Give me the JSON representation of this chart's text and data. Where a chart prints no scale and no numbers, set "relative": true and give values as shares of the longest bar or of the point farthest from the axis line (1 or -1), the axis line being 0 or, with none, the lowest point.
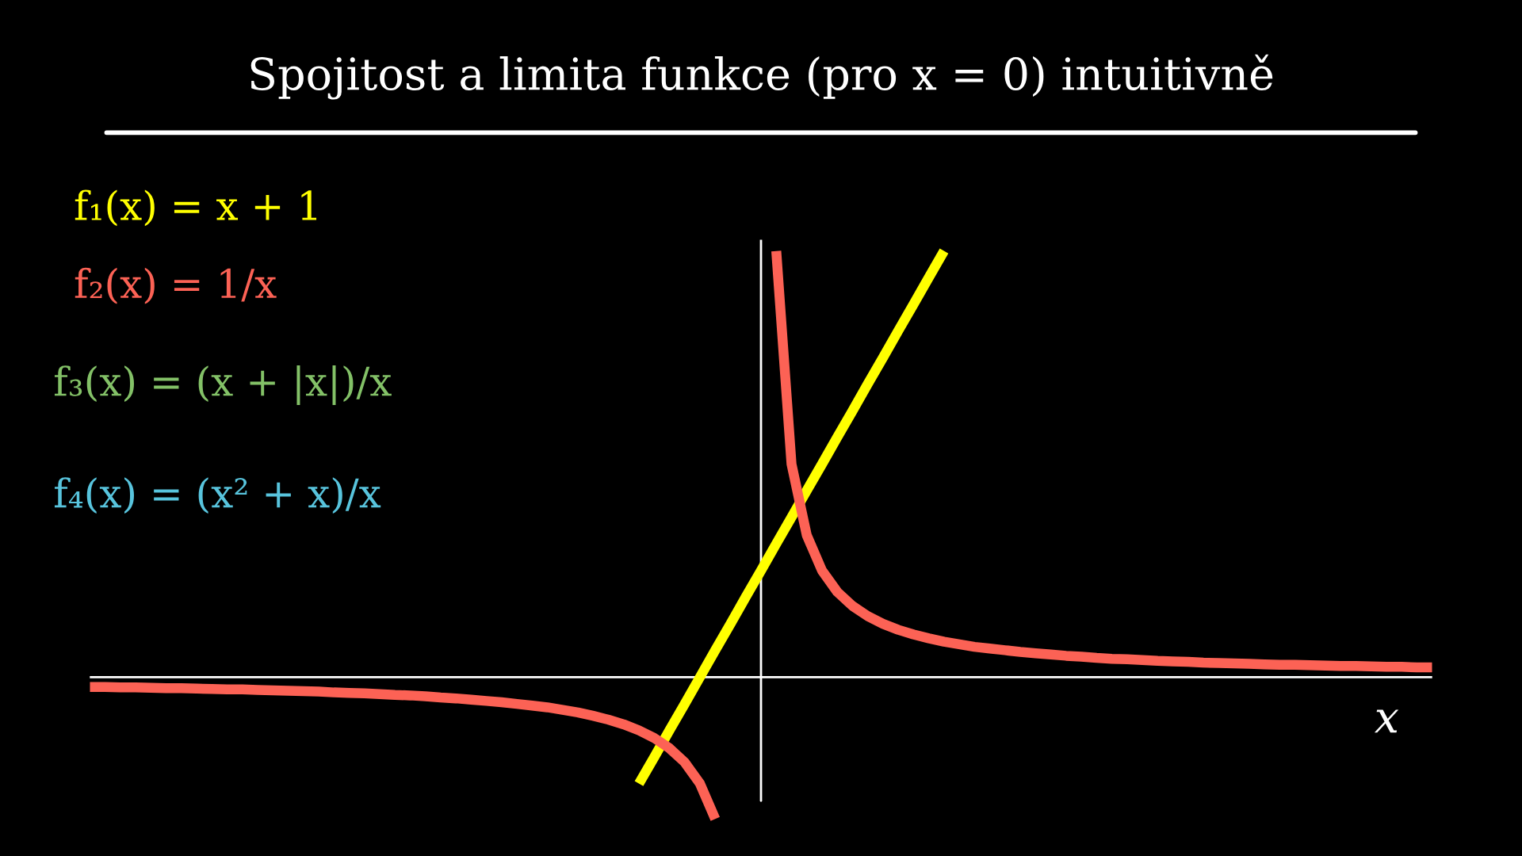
{
  "chart_data": {
    "type": "line",
    "title": "Spojitost a limita funkce (pro x = 0) intuitivně",
    "xlabel": "x",
    "relative": true,
    "legend": "top left",
    "categories": [
      null,
      null,
      null,
      null,
      null,
      null,
      null,
      null,
      null,
      null,
      null,
      null,
      null,
      null,
      null,
      null,
      null,
      null,
      null,
      null,
      null,
      null,
      null,
      null,
      null,
      null,
      null,
      null,
      null,
      null,
      null,
      null,
      null,
      null,
      null,
      null,
      null,
      null,
      null,
      null,
      null,
      null,
      null,
      null,
      null,
      null,
      null,
      null,
      null,
      null,
      null,
      null,
      null,
      null,
      null,
      null,
      null,
      null,
      null,
      null,
      null,
      null,
      null,
      null,
      null,
      null,
      null,
      null,
      null,
      null,
      null,
      null,
      null,
      null,
      null,
      null,
      null,
      null,
      null,
      null,
      null,
      null,
      null,
      null,
      null,
      null,
      null,
      null,
      null
    ],
    "series": [
      {
        "name": "f₁(x) = x + 1",
        "color": "#ffff00",
        "values": [
          null,
          null,
          null,
          null,
          null,
          null,
          null,
          null,
          null,
          null,
          null,
          null,
          null,
          null,
          null,
          null,
          null,
          null,
          null,
          null,
          null,
          null,
          null,
          null,
          null,
          null,
          null,
          null,
          null,
          null,
          null,
          null,
          null,
          null,
          null,
          null,
          -0.25,
          -0.188,
          -0.125,
          -0.063,
          0,
          0.063,
          0.125,
          0.188,
          0.25,
          0.313,
          0.375,
          0.438,
          0.5,
          0.563,
          0.625,
          0.688,
          0.75,
          0.813,
          0.875,
          0.938,
          1,
          null,
          null,
          null,
          null,
          null,
          null,
          null,
          null,
          null,
          null,
          null,
          null,
          null,
          null,
          null,
          null,
          null,
          null,
          null,
          null,
          null,
          null,
          null,
          null,
          null,
          null,
          null,
          null,
          null,
          null,
          null,
          null
        ]
      },
      {
        "name": "f₂(x) = 1/x",
        "color": "#fc6255",
        "values": [
          -0.023,
          -0.023,
          -0.024,
          -0.024,
          -0.025,
          -0.026,
          -0.026,
          -0.027,
          -0.028,
          -0.029,
          -0.029,
          -0.03,
          -0.031,
          -0.032,
          -0.033,
          -0.034,
          -0.036,
          -0.037,
          -0.038,
          -0.04,
          -0.042,
          -0.043,
          -0.045,
          -0.048,
          -0.05,
          -0.053,
          -0.056,
          -0.059,
          -0.063,
          -0.067,
          -0.071,
          -0.077,
          -0.083,
          -0.091,
          -0.1,
          -0.111,
          -0.125,
          -0.143,
          -0.167,
          -0.2,
          -0.25,
          -0.333,
          null,
          null,
          null,
          1,
          0.5,
          0.333,
          0.25,
          0.2,
          0.167,
          0.143,
          0.125,
          0.111,
          0.1,
          0.091,
          0.083,
          0.077,
          0.071,
          0.067,
          0.063,
          0.059,
          0.056,
          0.053,
          0.05,
          0.048,
          0.045,
          0.043,
          0.042,
          0.04,
          0.038,
          0.037,
          0.036,
          0.034,
          0.033,
          0.032,
          0.031,
          0.03,
          0.029,
          0.029,
          0.028,
          0.027,
          0.026,
          0.026,
          0.025,
          0.024,
          0.024,
          0.023,
          0.023
        ]
      }
    ],
    "annotations": [
      "f₃(x) = (x + |x|)/x",
      "f₄(x) = (x² + x)/x"
    ]
  }
}
